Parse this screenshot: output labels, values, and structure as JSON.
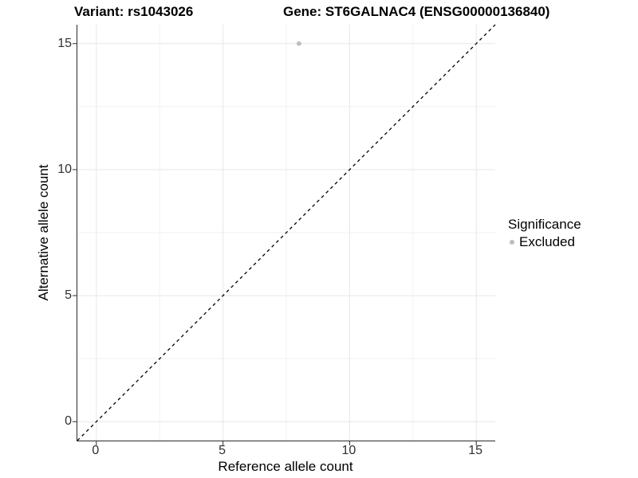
{
  "title": {
    "variant": "Variant: rs1043026",
    "gene": "Gene: ST6GALNAC4 (ENSG00000136840)"
  },
  "axes": {
    "x": {
      "label": "Reference allele count"
    },
    "y": {
      "label": "Alternative allele count"
    }
  },
  "legend": {
    "title": "Significance",
    "items": [
      {
        "label": "Excluded",
        "color": "#bdbdbd",
        "marker": "circle"
      }
    ]
  },
  "colors": {
    "background": "#ffffff",
    "axis_line": "#2b2b2b",
    "tick_text": "#303030",
    "grid_major": "#e7e7e7",
    "grid_minor": "#f2f2f2",
    "point": "#bdbdbd",
    "reference_line": "#000000"
  },
  "chart_data": {
    "type": "scatter",
    "title": "Variant: rs1043026   |   Gene: ST6GALNAC4 (ENSG00000136840)",
    "xlabel": "Reference allele count",
    "ylabel": "Alternative allele count",
    "xlim": [
      -0.75,
      15.75
    ],
    "ylim": [
      -0.75,
      15.75
    ],
    "xticks": [
      0,
      5,
      10,
      15
    ],
    "yticks": [
      0,
      5,
      10,
      15
    ],
    "grid": {
      "major": true,
      "minor": "midpoints between major ticks"
    },
    "reference_line": {
      "equation": "y = x",
      "style": "dashed",
      "color": "#000000"
    },
    "series": [
      {
        "name": "Excluded",
        "color": "#bdbdbd",
        "marker": "circle",
        "points": [
          {
            "x": 8,
            "y": 15
          }
        ]
      }
    ],
    "legend_position": "right-middle",
    "aspect": "fixed (1 data unit x = 1 data unit y)"
  }
}
